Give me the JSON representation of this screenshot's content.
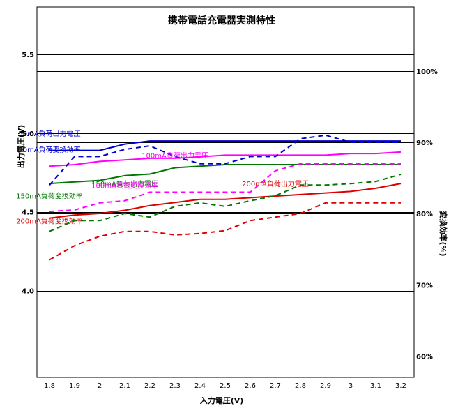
{
  "chart_data": {
    "type": "line",
    "title": "携帯電話充電器実測特性",
    "xlabel": "入力電圧(V)",
    "ylabel": "出力電圧(V)",
    "y2label": "変換効率(%)",
    "x": [
      "1.8",
      "1.9",
      "2",
      "2.1",
      "2.2",
      "2.3",
      "2.4",
      "2.5",
      "2.6",
      "2.7",
      "2.8",
      "2.9",
      "3",
      "3.1",
      "3.2"
    ],
    "ylim": [
      3.45,
      5.8
    ],
    "yticks": [
      "4.0",
      "4.5",
      "5.0",
      "5.5"
    ],
    "y2lim": [
      57,
      109
    ],
    "y2ticks": [
      "60%",
      "70%",
      "80%",
      "90%",
      "100%"
    ],
    "grid": true,
    "series": [
      {
        "name": "50mA負荷出力電圧",
        "axis": "left",
        "style": "solid",
        "color": "#0000cc",
        "values": [
          4.89,
          4.89,
          4.89,
          4.93,
          4.95,
          4.95,
          4.95,
          4.95,
          4.95,
          4.95,
          4.95,
          4.95,
          4.95,
          4.95,
          4.95
        ]
      },
      {
        "name": "100mA負荷出力電圧",
        "axis": "left",
        "style": "solid",
        "color": "#ff00ff",
        "values": [
          4.79,
          4.8,
          4.82,
          4.83,
          4.84,
          4.84,
          4.85,
          4.86,
          4.86,
          4.86,
          4.86,
          4.86,
          4.87,
          4.87,
          4.88
        ]
      },
      {
        "name": "150mA負荷出力電圧",
        "axis": "left",
        "style": "solid",
        "color": "#007700",
        "values": [
          4.68,
          4.69,
          4.7,
          4.73,
          4.74,
          4.78,
          4.79,
          4.8,
          4.8,
          4.8,
          4.8,
          4.8,
          4.8,
          4.8,
          4.8
        ]
      },
      {
        "name": "200mA負荷出力電圧",
        "axis": "left",
        "style": "solid",
        "color": "#dd0000",
        "values": [
          4.46,
          4.48,
          4.49,
          4.51,
          4.54,
          4.56,
          4.58,
          4.58,
          4.59,
          4.6,
          4.61,
          4.62,
          4.63,
          4.65,
          4.68
        ]
      },
      {
        "name": "50mA負荷変換効率",
        "axis": "right",
        "style": "dashed",
        "color": "#0000cc",
        "values": [
          84.0,
          88.0,
          88.0,
          89.0,
          89.5,
          88.0,
          87.0,
          87.0,
          88.0,
          88.0,
          90.5,
          91.0,
          90.0,
          90.0,
          90.0
        ]
      },
      {
        "name": "100mA負荷変換効率",
        "axis": "right",
        "style": "dashed",
        "color": "#ff00ff",
        "values": [
          80.3,
          80.5,
          81.5,
          81.8,
          83.0,
          83.0,
          83.0,
          83.0,
          83.0,
          86.0,
          87.0,
          87.0,
          87.0,
          87.0,
          87.0
        ]
      },
      {
        "name": "150mA負荷変換効率",
        "axis": "right",
        "style": "dashed",
        "color": "#007700",
        "values": [
          77.5,
          79.0,
          79.0,
          80.0,
          79.5,
          81.0,
          81.5,
          81.0,
          81.8,
          82.5,
          84.0,
          84.0,
          84.2,
          84.5,
          85.5
        ]
      },
      {
        "name": "200mA負荷変換効率",
        "axis": "right",
        "style": "dashed",
        "color": "#dd0000",
        "values": [
          73.5,
          75.5,
          76.8,
          77.5,
          77.5,
          77.0,
          77.2,
          77.6,
          79.0,
          79.5,
          80.0,
          81.5,
          81.5,
          81.5,
          81.5
        ]
      }
    ],
    "labels": [
      {
        "text": "50mA負荷出力電圧",
        "series": 0,
        "x": "2.85",
        "y": 5.0
      },
      {
        "text": "100mA負荷出力電圧",
        "series": 1,
        "x": "2.3",
        "y": 4.86
      },
      {
        "text": "150mA負荷出力電圧",
        "series": 2,
        "x": "2.1",
        "y": 4.68
      },
      {
        "text": "200mA負荷出力電圧",
        "series": 3,
        "x": "2.7",
        "y": 4.68
      },
      {
        "text": "50mA負荷変換効率",
        "series": 4,
        "x": "2.45",
        "y": 89.0
      },
      {
        "text": "100mA負荷変換効率",
        "series": 5,
        "x": "2.1",
        "y": 84.0
      },
      {
        "text": "150mA負荷変換効率",
        "series": 6,
        "x": "2.85",
        "y": 82.5
      },
      {
        "text": "200mA負荷変換効率",
        "series": 7,
        "x": "2.75",
        "y": 79.0
      }
    ]
  }
}
